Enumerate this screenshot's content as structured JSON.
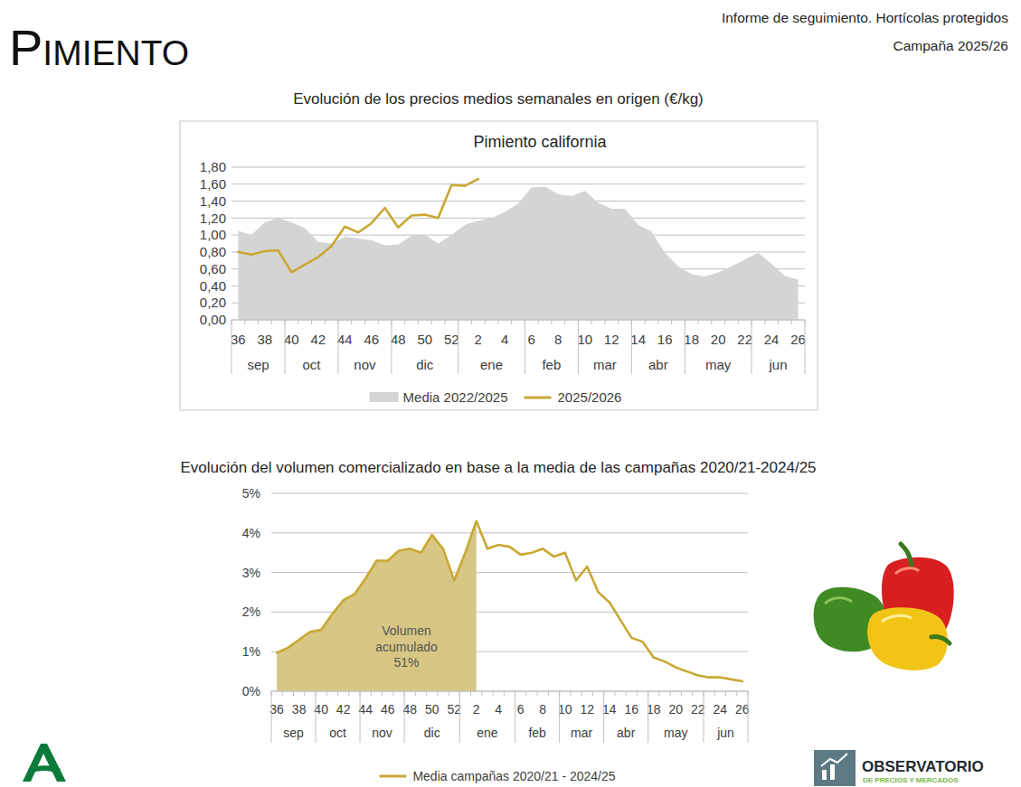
{
  "header": {
    "title": "Pimiento",
    "report": "Informe de seguimiento. Hortícolas protegidos",
    "campaign": "Campaña 2025/26"
  },
  "footer": {
    "logo_title": "OBSERVATORIO",
    "logo_subtitle": "DE PRECIOS Y MERCADOS"
  },
  "chart_data": [
    {
      "type": "line",
      "title": "Evolución de los precios medios semanales en origen (€/kg)",
      "subtitle": "Pimiento california",
      "categories": [
        "36",
        null,
        "38",
        null,
        "40",
        null,
        "42",
        null,
        "44",
        null,
        "46",
        null,
        "48",
        null,
        "50",
        null,
        "52",
        null,
        "2",
        null,
        "4",
        null,
        "6",
        null,
        "8",
        null,
        "10",
        null,
        "12",
        null,
        "14",
        null,
        "16",
        null,
        "18",
        null,
        "20",
        null,
        "22",
        null,
        "24",
        null,
        "26"
      ],
      "x_groups": [
        {
          "label": "sep",
          "count": 4
        },
        {
          "label": "oct",
          "count": 4
        },
        {
          "label": "nov",
          "count": 4
        },
        {
          "label": "dic",
          "count": 5
        },
        {
          "label": "ene",
          "count": 5
        },
        {
          "label": "feb",
          "count": 4
        },
        {
          "label": "mar",
          "count": 4
        },
        {
          "label": "abr",
          "count": 4
        },
        {
          "label": "may",
          "count": 5
        },
        {
          "label": "jun",
          "count": 4
        }
      ],
      "series": [
        {
          "name": "Media 2022/2025",
          "type": "area",
          "color": "#d4d4d4",
          "values": [
            1.05,
            1.0,
            1.15,
            1.2,
            1.15,
            1.08,
            0.92,
            0.9,
            0.98,
            0.96,
            0.94,
            0.88,
            0.89,
            0.99,
            1.01,
            0.9,
            1.0,
            1.12,
            1.17,
            1.2,
            1.27,
            1.37,
            1.56,
            1.57,
            1.48,
            1.46,
            1.52,
            1.38,
            1.31,
            1.31,
            1.12,
            1.04,
            0.79,
            0.63,
            0.54,
            0.51,
            0.56,
            0.63,
            0.71,
            0.79,
            0.66,
            0.52,
            0.47
          ]
        },
        {
          "name": "2025/2026",
          "type": "line",
          "color": "#c9a833",
          "values": [
            0.8,
            0.77,
            0.81,
            0.82,
            0.56,
            0.65,
            0.74,
            0.87,
            1.1,
            1.03,
            1.14,
            1.32,
            1.09,
            1.23,
            1.24,
            1.2,
            1.59,
            1.58,
            1.66,
            null,
            null,
            null,
            null,
            null,
            null,
            null,
            null,
            null,
            null,
            null,
            null,
            null,
            null,
            null,
            null,
            null,
            null,
            null,
            null,
            null,
            null,
            null,
            null
          ]
        }
      ],
      "ylim": [
        0,
        1.8
      ],
      "yticks": [
        {
          "value": 0,
          "label": "0,00"
        },
        {
          "value": 0.2,
          "label": "0,20"
        },
        {
          "value": 0.4,
          "label": "0,40"
        },
        {
          "value": 0.6,
          "label": "0,60"
        },
        {
          "value": 0.8,
          "label": "0,80"
        },
        {
          "value": 1.0,
          "label": "1,00"
        },
        {
          "value": 1.2,
          "label": "1,20"
        },
        {
          "value": 1.4,
          "label": "1,40"
        },
        {
          "value": 1.6,
          "label": "1,60"
        },
        {
          "value": 1.8,
          "label": "1,80"
        }
      ],
      "grid": true,
      "legend": "bottom"
    },
    {
      "type": "line",
      "title": "Evolución del volumen comercializado en base a la media de las campañas 2020/21-2024/25",
      "categories": [
        "36",
        null,
        "38",
        null,
        "40",
        null,
        "42",
        null,
        "44",
        null,
        "46",
        null,
        "48",
        null,
        "50",
        null,
        "52",
        null,
        "2",
        null,
        "4",
        null,
        "6",
        null,
        "8",
        null,
        "10",
        null,
        "12",
        null,
        "14",
        null,
        "16",
        null,
        "18",
        null,
        "20",
        null,
        "22",
        null,
        "24",
        null,
        "26"
      ],
      "x_groups": [
        {
          "label": "sep",
          "count": 4
        },
        {
          "label": "oct",
          "count": 4
        },
        {
          "label": "nov",
          "count": 4
        },
        {
          "label": "dic",
          "count": 5
        },
        {
          "label": "ene",
          "count": 5
        },
        {
          "label": "feb",
          "count": 4
        },
        {
          "label": "mar",
          "count": 4
        },
        {
          "label": "abr",
          "count": 4
        },
        {
          "label": "may",
          "count": 5
        },
        {
          "label": "jun",
          "count": 4
        }
      ],
      "series": [
        {
          "name": "Media campañas 2020/21 - 2024/25",
          "type": "line",
          "color": "#c9a833",
          "values": [
            0.97,
            1.1,
            1.3,
            1.5,
            1.55,
            1.95,
            2.3,
            2.45,
            2.85,
            3.3,
            3.3,
            3.55,
            3.6,
            3.5,
            3.95,
            3.6,
            2.8,
            3.5,
            4.3,
            3.6,
            3.7,
            3.65,
            3.45,
            3.5,
            3.6,
            3.4,
            3.5,
            2.8,
            3.15,
            2.5,
            2.25,
            1.8,
            1.35,
            1.25,
            0.85,
            0.75,
            0.6,
            0.5,
            0.4,
            0.35,
            0.35,
            0.3,
            0.25
          ]
        }
      ],
      "annotations": [
        {
          "text": "Volumen acumulado 51%",
          "x_end": "2",
          "color": "#d8c684"
        }
      ],
      "ylim": [
        0,
        5
      ],
      "yticks": [
        {
          "value": 0,
          "label": "0%"
        },
        {
          "value": 1,
          "label": "1%"
        },
        {
          "value": 2,
          "label": "2%"
        },
        {
          "value": 3,
          "label": "3%"
        },
        {
          "value": 4,
          "label": "4%"
        },
        {
          "value": 5,
          "label": "5%"
        }
      ],
      "grid": true,
      "legend": "bottom"
    }
  ]
}
